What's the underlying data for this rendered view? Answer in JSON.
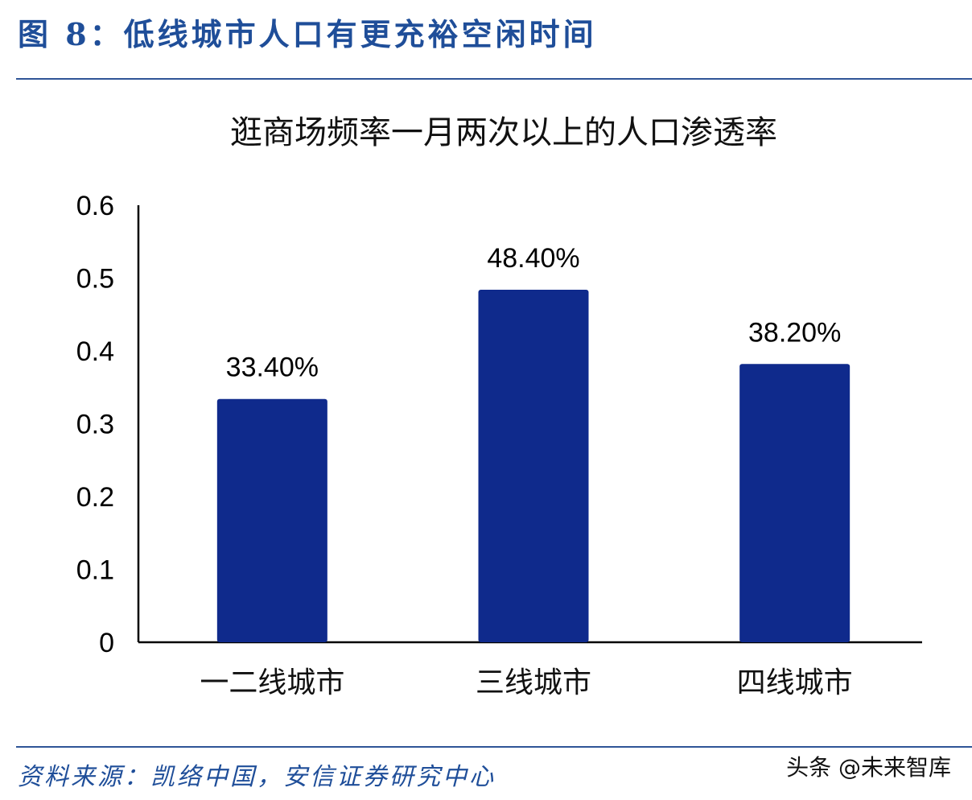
{
  "figure_title": "图 8：低线城市人口有更充裕空闲时间",
  "source_note": "资料来源：凯络中国，安信证券研究中心",
  "watermark": "头条 @未来智库",
  "colors": {
    "bar": "#0f2a8c",
    "title_blue": "#1f4e99",
    "rule": "#2f5597",
    "axis": "#000000"
  },
  "chart_data": {
    "type": "bar",
    "title": "逛商场频率一月两次以上的人口渗透率",
    "categories": [
      "一二线城市",
      "三线城市",
      "四线城市"
    ],
    "values": [
      0.334,
      0.484,
      0.382
    ],
    "data_labels": [
      "33.40%",
      "48.40%",
      "38.20%"
    ],
    "ylim": [
      0,
      0.6
    ],
    "yticks": [
      0,
      0.1,
      0.2,
      0.3,
      0.4,
      0.5,
      0.6
    ],
    "ytick_labels": [
      "0",
      "0.1",
      "0.2",
      "0.3",
      "0.4",
      "0.5",
      "0.6"
    ],
    "xlabel": "",
    "ylabel": "",
    "grid": false,
    "legend": "none"
  }
}
